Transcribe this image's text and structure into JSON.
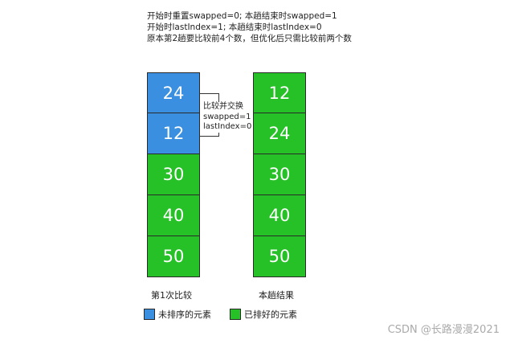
{
  "notes": [
    "开始时重置swapped=0; 本趟结束时swapped=1",
    "开始时lastIndex=1; 本趟结束时lastIndex=0",
    "原本第2趟要比较前4个数，但优化后只需比较前两个数"
  ],
  "left_column": {
    "label": "第1次比较",
    "cells": [
      {
        "value": "24",
        "state": "unsorted"
      },
      {
        "value": "12",
        "state": "unsorted"
      },
      {
        "value": "30",
        "state": "sorted"
      },
      {
        "value": "40",
        "state": "sorted"
      },
      {
        "value": "50",
        "state": "sorted"
      }
    ]
  },
  "right_column": {
    "label": "本趟结果",
    "cells": [
      {
        "value": "12",
        "state": "sorted"
      },
      {
        "value": "24",
        "state": "sorted"
      },
      {
        "value": "30",
        "state": "sorted"
      },
      {
        "value": "40",
        "state": "sorted"
      },
      {
        "value": "50",
        "state": "sorted"
      }
    ]
  },
  "annotation": [
    "比较并交换",
    "swapped=1",
    "lastIndex=0"
  ],
  "legend": {
    "unsorted": {
      "label": "未排序的元素",
      "color": "#3a8fe0"
    },
    "sorted": {
      "label": "已排好的元素",
      "color": "#26c027"
    }
  },
  "watermark": "CSDN @长路漫漫2021"
}
